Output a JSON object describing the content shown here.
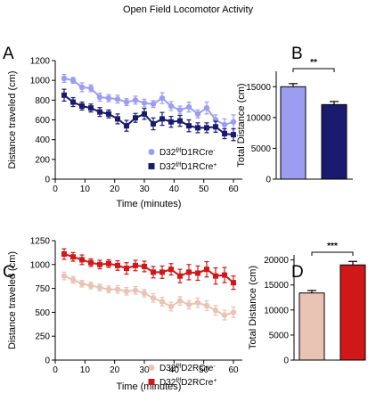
{
  "figure_title": "Open Field Locomotor Activity",
  "chart_data": [
    {
      "panel": "A",
      "type": "line",
      "xlabel": "Time (minutes)",
      "ylabel": "Distance traveled (cm)",
      "xlim": [
        0,
        63
      ],
      "ylim": [
        0,
        1200
      ],
      "xticks": [
        0,
        10,
        20,
        30,
        40,
        50,
        60
      ],
      "yticks": [
        0,
        200,
        400,
        600,
        800,
        1000,
        1200
      ],
      "x": [
        3,
        6,
        9,
        12,
        15,
        18,
        21,
        24,
        27,
        30,
        33,
        36,
        39,
        42,
        45,
        48,
        51,
        54,
        57,
        60
      ],
      "legend_position": "bottom-right",
      "series": [
        {
          "name_base": "D32",
          "name_sup": "f/f",
          "name_mid": "D1RCre",
          "name_tail_sup": "-",
          "color": "#9b9ef0",
          "marker": "circle",
          "values": [
            1020,
            1000,
            930,
            920,
            830,
            820,
            810,
            780,
            800,
            770,
            760,
            820,
            740,
            700,
            730,
            660,
            720,
            600,
            550,
            580
          ],
          "errors": [
            40,
            30,
            45,
            35,
            40,
            35,
            40,
            35,
            40,
            40,
            35,
            55,
            45,
            40,
            50,
            40,
            60,
            50,
            60,
            70
          ]
        },
        {
          "name_base": "D32",
          "name_sup": "f/f",
          "name_mid": "D1RCre",
          "name_tail_sup": "+",
          "color": "#1a1a6e",
          "marker": "square",
          "values": [
            850,
            780,
            740,
            720,
            680,
            660,
            610,
            540,
            620,
            660,
            560,
            610,
            580,
            590,
            540,
            520,
            520,
            530,
            460,
            450
          ],
          "errors": [
            60,
            45,
            40,
            40,
            45,
            40,
            50,
            55,
            45,
            55,
            60,
            65,
            55,
            55,
            60,
            50,
            50,
            55,
            50,
            60
          ]
        }
      ]
    },
    {
      "panel": "B",
      "type": "bar",
      "ylabel": "Total Distance (cm)",
      "ylim": [
        0,
        17500
      ],
      "yticks": [
        0,
        5000,
        10000,
        15000
      ],
      "series": [
        {
          "value": 15000,
          "error": 500,
          "color": "#9b9ef0"
        },
        {
          "value": 12100,
          "error": 500,
          "color": "#1a1a6e"
        }
      ],
      "significance": "**"
    },
    {
      "panel": "C",
      "type": "line",
      "xlabel": "Time (minutes)",
      "ylabel": "Distance traveled (cm)",
      "xlim": [
        0,
        63
      ],
      "ylim": [
        0,
        1250
      ],
      "xticks": [
        0,
        10,
        20,
        30,
        40,
        50,
        60
      ],
      "yticks": [
        0,
        250,
        500,
        750,
        1000,
        1250
      ],
      "x": [
        3,
        6,
        9,
        12,
        15,
        18,
        21,
        24,
        27,
        30,
        33,
        36,
        39,
        42,
        45,
        48,
        51,
        54,
        57,
        60
      ],
      "legend_position": "bottom-right",
      "series": [
        {
          "name_base": "D32",
          "name_sup": "f/f",
          "name_mid": "D2RCre",
          "name_tail_sup": "-",
          "color": "#e9c3b3",
          "marker": "circle",
          "values": [
            880,
            840,
            800,
            780,
            760,
            740,
            740,
            720,
            730,
            700,
            650,
            610,
            560,
            620,
            580,
            600,
            570,
            520,
            470,
            500
          ],
          "errors": [
            40,
            35,
            35,
            35,
            35,
            35,
            40,
            40,
            40,
            40,
            45,
            45,
            45,
            45,
            45,
            50,
            50,
            50,
            50,
            55
          ]
        },
        {
          "name_base": "D32",
          "name_sup": "f/f",
          "name_mid": "D2RCre",
          "name_tail_sup": "+",
          "color": "#d01818",
          "marker": "square",
          "values": [
            1110,
            1080,
            1050,
            1020,
            1000,
            1010,
            990,
            960,
            990,
            980,
            920,
            920,
            950,
            880,
            920,
            910,
            950,
            880,
            890,
            810
          ],
          "errors": [
            55,
            45,
            50,
            40,
            45,
            40,
            50,
            60,
            55,
            55,
            60,
            65,
            60,
            70,
            80,
            75,
            80,
            85,
            80,
            70
          ]
        }
      ]
    },
    {
      "panel": "D",
      "type": "bar",
      "ylabel": "Total Distance (cm)",
      "ylim": [
        0,
        21000
      ],
      "yticks": [
        0,
        5000,
        10000,
        15000,
        20000
      ],
      "series": [
        {
          "value": 13400,
          "error": 500,
          "color": "#e9c3b3"
        },
        {
          "value": 19000,
          "error": 700,
          "color": "#d01818"
        }
      ],
      "significance": "***"
    }
  ]
}
